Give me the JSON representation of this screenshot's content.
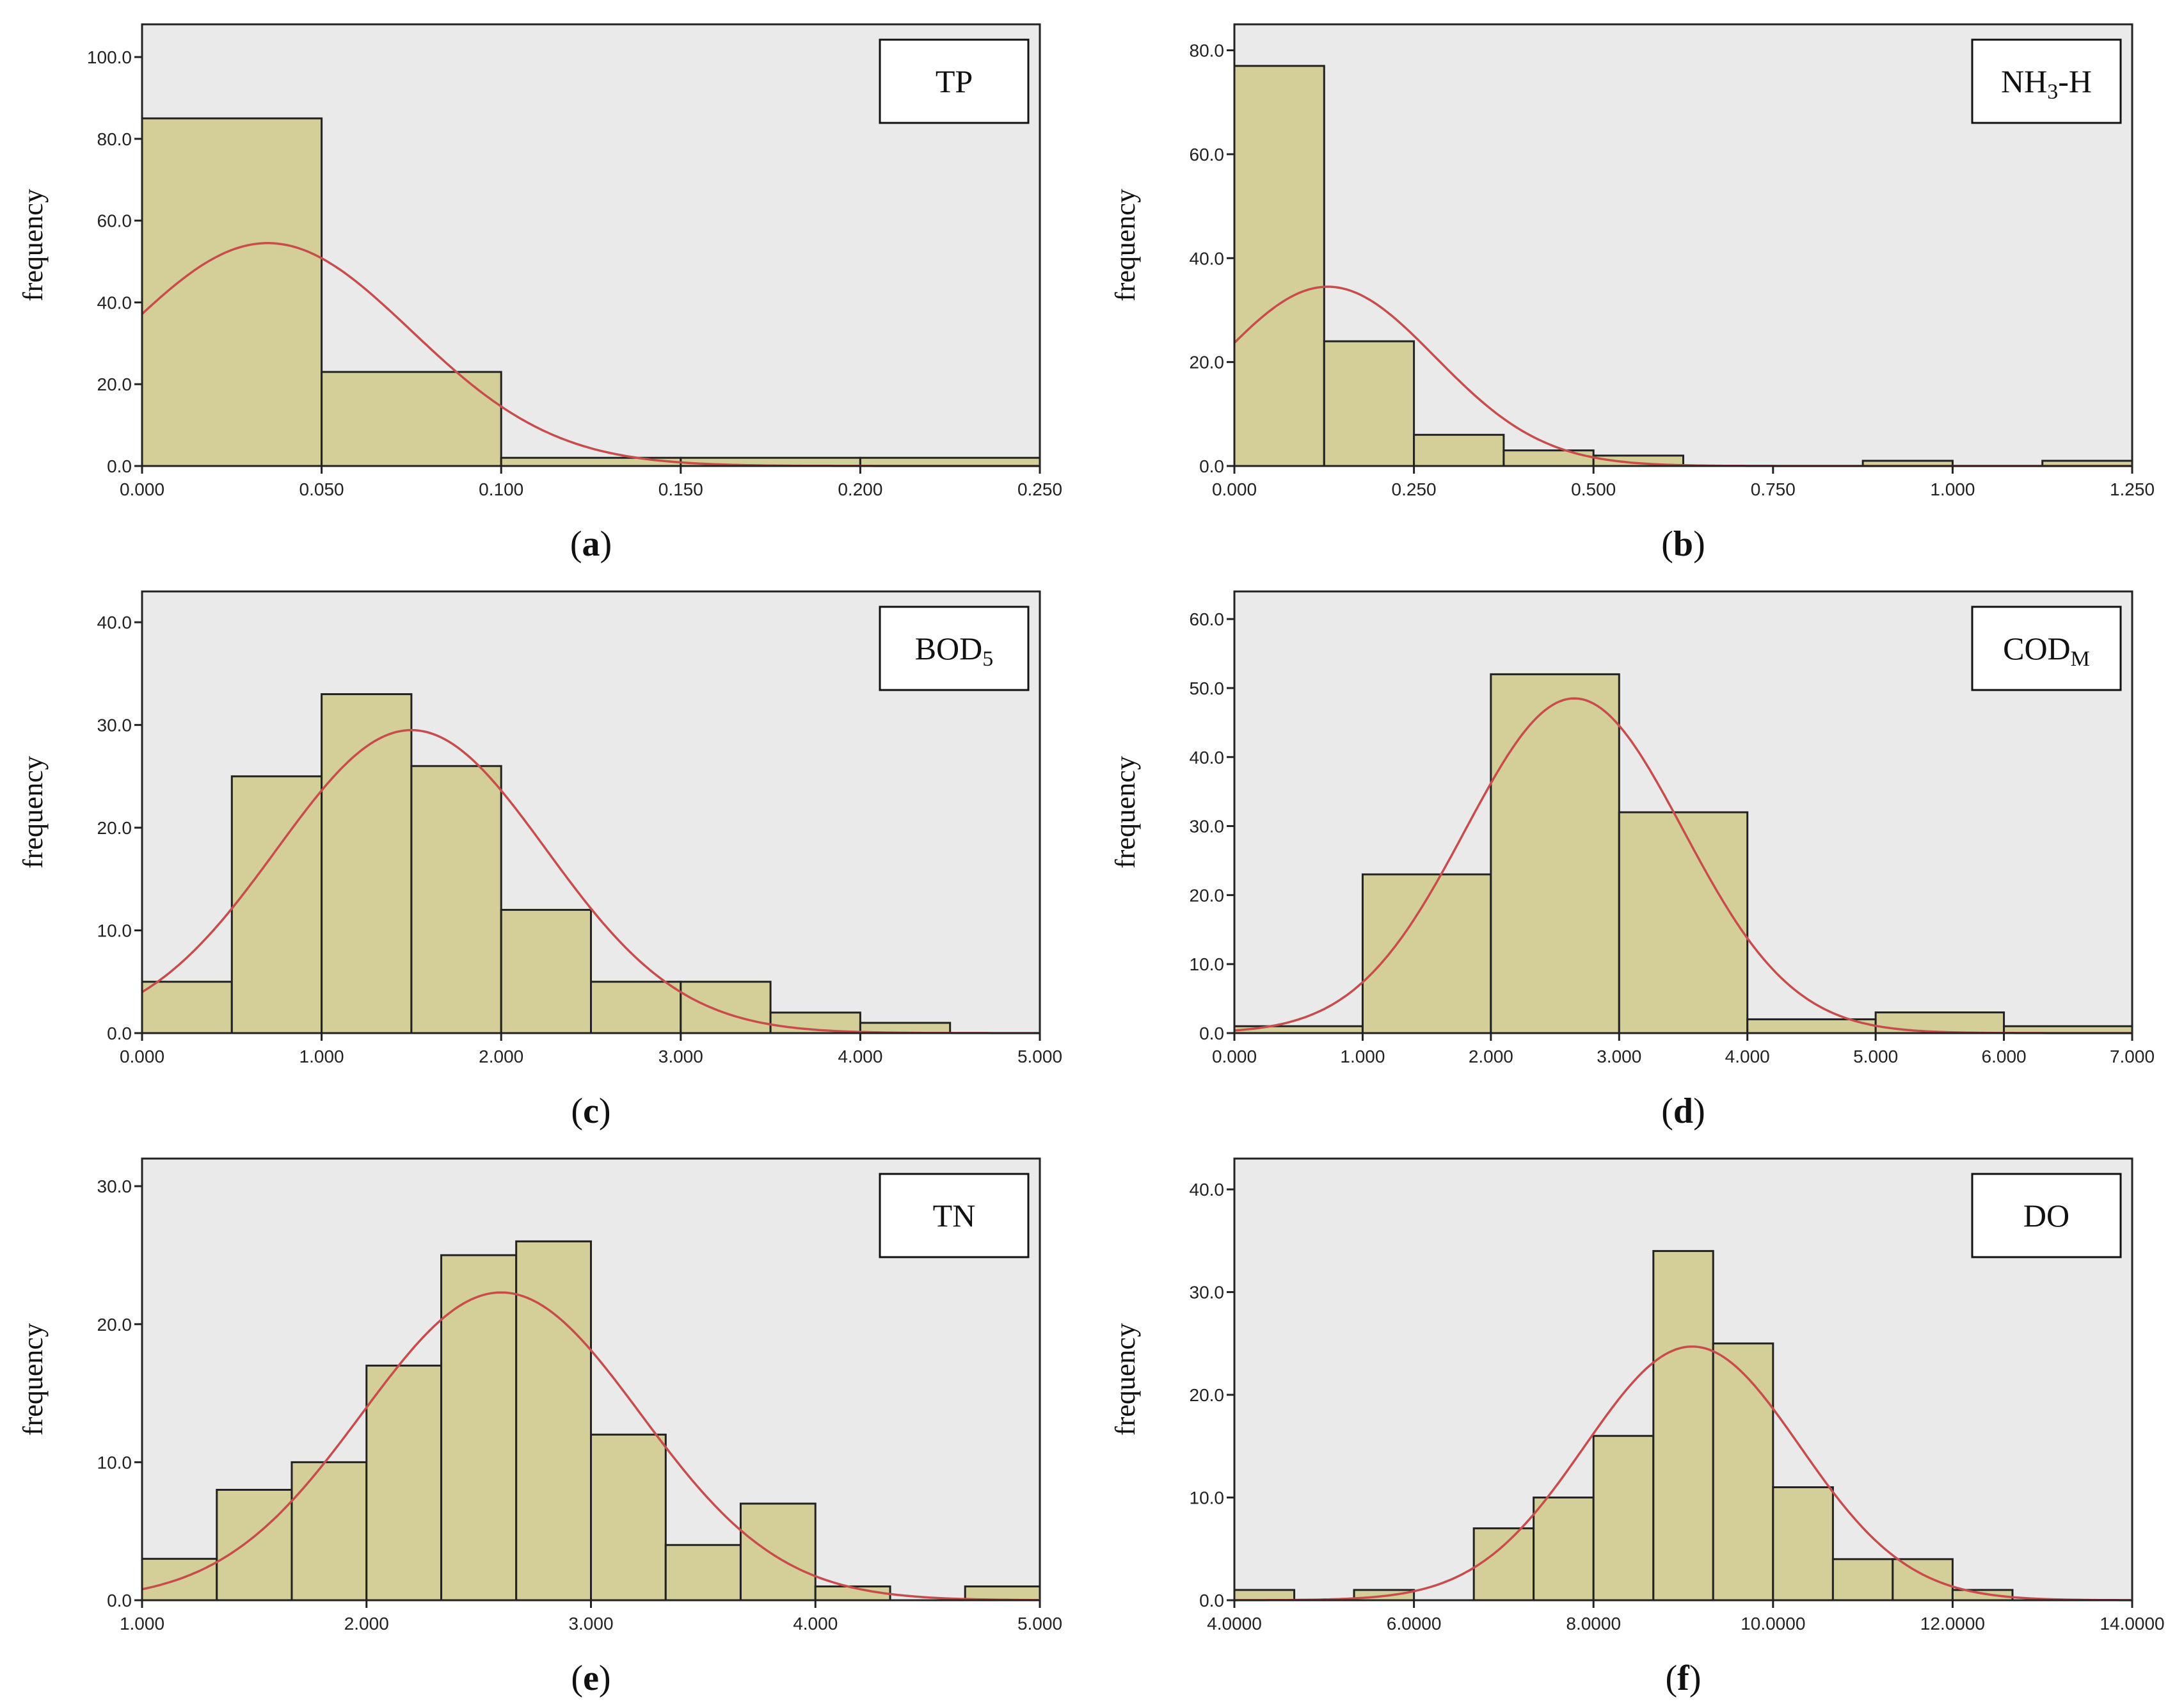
{
  "figure": {
    "ylabel": "frequency"
  },
  "colors": {
    "bar_fill": "#d4cf98",
    "plot_background": "#eaeaea",
    "curve": "#c84c4c"
  },
  "chart_data": [
    {
      "id": "a",
      "type": "bar",
      "subtype": "histogram-with-normal-curve",
      "title": "TP",
      "title_main": "TP",
      "title_sub": "",
      "title_suffix": "",
      "panel_label": "a",
      "ylabel": "frequency",
      "xlim": [
        0,
        0.25
      ],
      "ylim": [
        0,
        108
      ],
      "xticks": [
        0,
        0.05,
        0.1,
        0.15,
        0.2,
        0.25
      ],
      "xtick_labels": [
        "0.000",
        "0.050",
        "0.100",
        "0.150",
        "0.200",
        "0.250"
      ],
      "yticks": [
        0,
        20,
        40,
        60,
        80,
        100
      ],
      "ytick_labels": [
        "0.0",
        "20.0",
        "40.0",
        "60.0",
        "80.0",
        "100.0"
      ],
      "bin_edges": [
        0,
        0.05,
        0.1,
        0.15,
        0.2,
        0.25
      ],
      "values": [
        85,
        23,
        2,
        2,
        2
      ],
      "normal_curve": {
        "mean": 0.035,
        "sd": 0.04,
        "peak": 54.5
      }
    },
    {
      "id": "b",
      "type": "bar",
      "subtype": "histogram-with-normal-curve",
      "title": "NH3-H",
      "title_main": "NH",
      "title_sub": "3",
      "title_suffix": "-H",
      "panel_label": "b",
      "ylabel": "frequency",
      "xlim": [
        0,
        1.25
      ],
      "ylim": [
        0,
        85
      ],
      "xticks": [
        0,
        0.25,
        0.5,
        0.75,
        1.0,
        1.25
      ],
      "xtick_labels": [
        "0.000",
        "0.250",
        "0.500",
        "0.750",
        "1.000",
        "1.250"
      ],
      "yticks": [
        0,
        20,
        40,
        60,
        80
      ],
      "ytick_labels": [
        "0.0",
        "20.0",
        "40.0",
        "60.0",
        "80.0"
      ],
      "bin_edges": [
        0,
        0.125,
        0.25,
        0.375,
        0.5,
        0.625,
        0.75,
        0.875,
        1.0,
        1.125,
        1.25
      ],
      "values": [
        77,
        24,
        6,
        3,
        2,
        0,
        0,
        1,
        0,
        1
      ],
      "normal_curve": {
        "mean": 0.13,
        "sd": 0.15,
        "peak": 34.5
      }
    },
    {
      "id": "c",
      "type": "bar",
      "subtype": "histogram-with-normal-curve",
      "title": "BOD5",
      "title_main": "BOD",
      "title_sub": "5",
      "title_suffix": "",
      "panel_label": "c",
      "ylabel": "frequency",
      "xlim": [
        0,
        5
      ],
      "ylim": [
        0,
        43
      ],
      "xticks": [
        0,
        1,
        2,
        3,
        4,
        5
      ],
      "xtick_labels": [
        "0.000",
        "1.000",
        "2.000",
        "3.000",
        "4.000",
        "5.000"
      ],
      "yticks": [
        0,
        10,
        20,
        30,
        40
      ],
      "ytick_labels": [
        "0.0",
        "10.0",
        "20.0",
        "30.0",
        "40.0"
      ],
      "bin_edges": [
        0,
        0.5,
        1.0,
        1.5,
        2.0,
        2.5,
        3.0,
        3.5,
        4.0,
        4.5,
        5.0
      ],
      "values": [
        5,
        25,
        33,
        26,
        12,
        5,
        5,
        2,
        1,
        0
      ],
      "normal_curve": {
        "mean": 1.5,
        "sd": 0.75,
        "peak": 29.5
      }
    },
    {
      "id": "d",
      "type": "bar",
      "subtype": "histogram-with-normal-curve",
      "title": "CODM",
      "title_main": "COD",
      "title_sub": "M",
      "title_suffix": "",
      "panel_label": "d",
      "ylabel": "frequency",
      "xlim": [
        0,
        7
      ],
      "ylim": [
        0,
        64
      ],
      "xticks": [
        0,
        1,
        2,
        3,
        4,
        5,
        6,
        7
      ],
      "xtick_labels": [
        "0.000",
        "1.000",
        "2.000",
        "3.000",
        "4.000",
        "5.000",
        "6.000",
        "7.000"
      ],
      "yticks": [
        0,
        10,
        20,
        30,
        40,
        50,
        60
      ],
      "ytick_labels": [
        "0.0",
        "10.0",
        "20.0",
        "30.0",
        "40.0",
        "50.0",
        "60.0"
      ],
      "bin_edges": [
        0,
        1,
        2,
        3,
        4,
        5,
        6,
        7
      ],
      "values": [
        1,
        23,
        52,
        32,
        2,
        3,
        1
      ],
      "normal_curve": {
        "mean": 2.65,
        "sd": 0.85,
        "peak": 48.5
      }
    },
    {
      "id": "e",
      "type": "bar",
      "subtype": "histogram-with-normal-curve",
      "title": "TN",
      "title_main": "TN",
      "title_sub": "",
      "title_suffix": "",
      "panel_label": "e",
      "ylabel": "frequency",
      "xlim": [
        1,
        5
      ],
      "ylim": [
        0,
        32
      ],
      "xticks": [
        1,
        2,
        3,
        4,
        5
      ],
      "xtick_labels": [
        "1.000",
        "2.000",
        "3.000",
        "4.000",
        "5.000"
      ],
      "yticks": [
        0,
        10,
        20,
        30
      ],
      "ytick_labels": [
        "0.0",
        "10.0",
        "20.0",
        "30.0"
      ],
      "bin_edges": [
        1.0,
        1.333,
        1.667,
        2.0,
        2.333,
        2.667,
        3.0,
        3.333,
        3.667,
        4.0,
        4.333,
        4.667,
        5.0
      ],
      "values": [
        3,
        8,
        10,
        17,
        25,
        26,
        12,
        4,
        7,
        1,
        0,
        1
      ],
      "normal_curve": {
        "mean": 2.6,
        "sd": 0.62,
        "peak": 22.3
      }
    },
    {
      "id": "f",
      "type": "bar",
      "subtype": "histogram-with-normal-curve",
      "title": "DO",
      "title_main": "DO",
      "title_sub": "",
      "title_suffix": "",
      "panel_label": "f",
      "ylabel": "frequency",
      "xlim": [
        4,
        14
      ],
      "ylim": [
        0,
        43
      ],
      "xticks": [
        4,
        6,
        8,
        10,
        12,
        14
      ],
      "xtick_labels": [
        "4.0000",
        "6.0000",
        "8.0000",
        "10.0000",
        "12.0000",
        "14.0000"
      ],
      "yticks": [
        0,
        10,
        20,
        30,
        40
      ],
      "ytick_labels": [
        "0.0",
        "10.0",
        "20.0",
        "30.0",
        "40.0"
      ],
      "bin_edges": [
        4.0,
        4.667,
        5.333,
        6.0,
        6.667,
        7.333,
        8.0,
        8.667,
        9.333,
        10.0,
        10.667,
        11.333,
        12.0,
        12.667,
        13.333,
        14.0
      ],
      "values": [
        1,
        0,
        1,
        0,
        7,
        10,
        16,
        34,
        25,
        11,
        4,
        4,
        1,
        0,
        0
      ],
      "normal_curve": {
        "mean": 9.1,
        "sd": 1.2,
        "peak": 24.7
      }
    }
  ]
}
